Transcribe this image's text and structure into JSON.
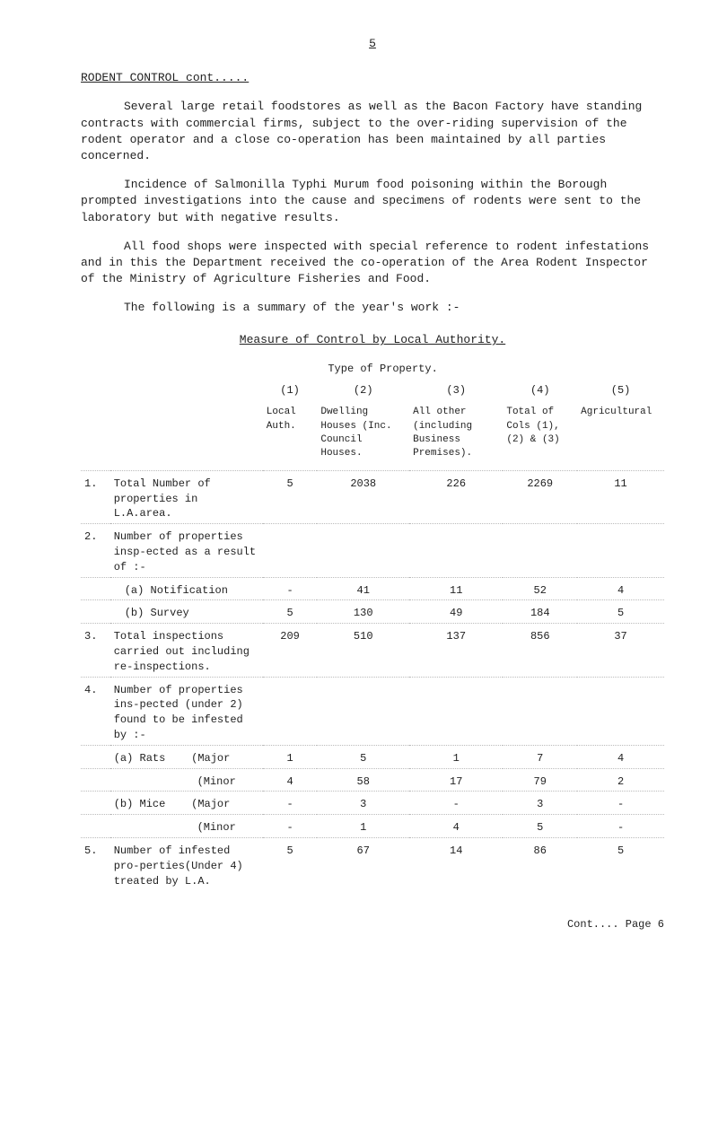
{
  "page_num": "5",
  "section_title": "RODENT CONTROL   cont.....",
  "paragraphs": [
    "Several large retail foodstores as well as the Bacon Factory have standing contracts with commercial firms, subject to the over-riding supervision of the rodent operator and a close co-operation has been maintained by all parties concerned.",
    "Incidence of Salmonilla Typhi Murum food poisoning within the Borough prompted investigations into the cause and specimens of rodents were sent to the laboratory but with negative results.",
    "All food shops were inspected with special reference to rodent infestations and in this the Department received the co-operation of the Area Rodent Inspector of the Ministry of Agriculture Fisheries and Food.",
    "The following is a summary of the year's work :-"
  ],
  "table_heading": "Measure of Control by Local Authority.",
  "columns": {
    "type_header": "Type of Property.",
    "c1_num": "(1)",
    "c2_num": "(2)",
    "c3_num": "(3)",
    "c4_num": "(4)",
    "c5_num": "(5)",
    "c1_label": "Local Auth.",
    "c2_label": "Dwelling Houses (Inc. Council Houses.",
    "c3_label": "All other (including Business Premises).",
    "c4_label": "Total of Cols (1),(2) & (3)",
    "c5_label": "Agricultural"
  },
  "rows": {
    "r1": {
      "num": "1.",
      "label": "Total Number of properties in L.A.area.",
      "c1": "5",
      "c2": "2038",
      "c3": "226",
      "c4": "2269",
      "c5": "11"
    },
    "r2": {
      "num": "2.",
      "label": "Number of properties insp-ected as a result of :-"
    },
    "r2a": {
      "label": "(a) Notification",
      "c1": "-",
      "c2": "41",
      "c3": "11",
      "c4": "52",
      "c5": "4"
    },
    "r2b": {
      "label": "(b) Survey",
      "c1": "5",
      "c2": "130",
      "c3": "49",
      "c4": "184",
      "c5": "5"
    },
    "r3": {
      "num": "3.",
      "label": "Total inspections carried out including re-inspections.",
      "c1": "209",
      "c2": "510",
      "c3": "137",
      "c4": "856",
      "c5": "37"
    },
    "r4": {
      "num": "4.",
      "label": "Number of properties ins-pected (under 2) found to be infested by :-"
    },
    "r4a_rats": "(a) Rats",
    "r4a_major": {
      "label": "(Major",
      "c1": "1",
      "c2": "5",
      "c3": "1",
      "c4": "7",
      "c5": "4"
    },
    "r4a_minor": {
      "label": "(Minor",
      "c1": "4",
      "c2": "58",
      "c3": "17",
      "c4": "79",
      "c5": "2"
    },
    "r4b_mice": "(b) Mice",
    "r4b_major": {
      "label": "(Major",
      "c1": "-",
      "c2": "3",
      "c3": "-",
      "c4": "3",
      "c5": "-"
    },
    "r4b_minor": {
      "label": "(Minor",
      "c1": "-",
      "c2": "1",
      "c3": "4",
      "c4": "5",
      "c5": "-"
    },
    "r5": {
      "num": "5.",
      "label": "Number of infested pro-perties(Under 4) treated by L.A.",
      "c1": "5",
      "c2": "67",
      "c3": "14",
      "c4": "86",
      "c5": "5"
    }
  },
  "footer": "Cont.... Page   6"
}
